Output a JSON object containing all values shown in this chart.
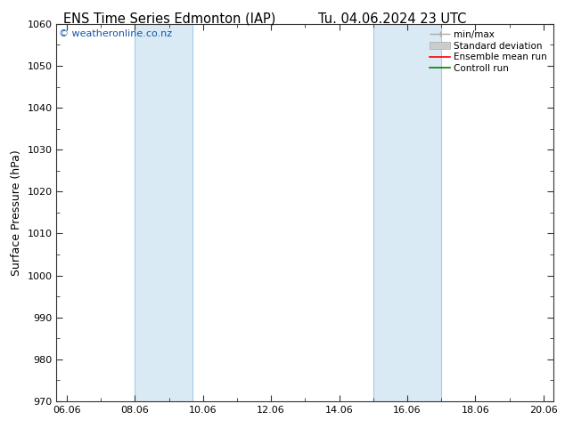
{
  "title_left": "ENS Time Series Edmonton (IAP)",
  "title_right": "Tu. 04.06.2024 23 UTC",
  "ylabel": "Surface Pressure (hPa)",
  "ylim": [
    970,
    1060
  ],
  "yticks": [
    970,
    980,
    990,
    1000,
    1010,
    1020,
    1030,
    1040,
    1050,
    1060
  ],
  "xtick_labels": [
    "06.06",
    "08.06",
    "10.06",
    "12.06",
    "14.06",
    "16.06",
    "18.06",
    "20.06"
  ],
  "xtick_positions": [
    0,
    2,
    4,
    6,
    8,
    10,
    12,
    14
  ],
  "xlim": [
    -0.3,
    14.3
  ],
  "watermark": "© weatheronline.co.nz",
  "band_color": "#daeaf5",
  "band_border_color": "#a8c8e8",
  "bands": [
    {
      "x_start": 2.0,
      "x_end": 3.7
    },
    {
      "x_start": 9.0,
      "x_end": 11.0
    }
  ],
  "background_color": "#ffffff",
  "title_fontsize": 10.5,
  "axis_label_fontsize": 9,
  "tick_fontsize": 8,
  "watermark_fontsize": 8,
  "watermark_color": "#1155aa",
  "legend_fontsize": 7.5,
  "spine_color": "#333333",
  "tick_color": "#333333"
}
